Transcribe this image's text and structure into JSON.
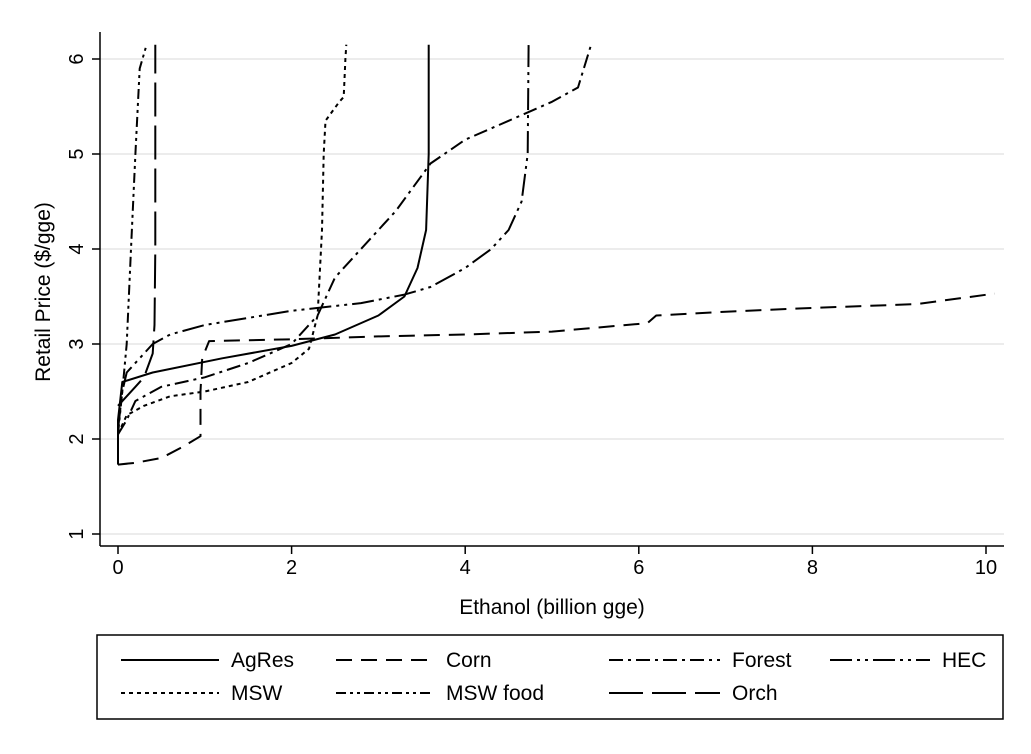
{
  "chart_data": {
    "type": "line",
    "xlabel": "Ethanol (billion gge)",
    "ylabel": "Retail Price ($/gge)",
    "xlim": [
      -0.2,
      10.2
    ],
    "ylim": [
      0.85,
      6.3
    ],
    "xticks": [
      0,
      2,
      4,
      6,
      8,
      10
    ],
    "yticks": [
      1,
      2,
      3,
      4,
      5,
      6
    ],
    "grid": "horizontal",
    "legend_position": "bottom",
    "series": [
      {
        "name": "AgRes",
        "dash": "solid",
        "points": [
          [
            0,
            1.73
          ],
          [
            0,
            2.2
          ],
          [
            0.05,
            2.6
          ],
          [
            0.4,
            2.7
          ],
          [
            1.2,
            2.85
          ],
          [
            2,
            2.98
          ],
          [
            2.5,
            3.1
          ],
          [
            3,
            3.3
          ],
          [
            3.3,
            3.5
          ],
          [
            3.45,
            3.8
          ],
          [
            3.55,
            4.2
          ],
          [
            3.58,
            5
          ],
          [
            3.58,
            6.15
          ]
        ]
      },
      {
        "name": "Corn",
        "dash": "longdash",
        "points": [
          [
            0,
            1.73
          ],
          [
            0.2,
            1.75
          ],
          [
            0.5,
            1.8
          ],
          [
            0.75,
            1.92
          ],
          [
            0.95,
            2.03
          ],
          [
            0.95,
            2.5
          ],
          [
            0.97,
            2.85
          ],
          [
            1.05,
            3.03
          ],
          [
            2,
            3.05
          ],
          [
            3,
            3.08
          ],
          [
            4,
            3.1
          ],
          [
            5,
            3.13
          ],
          [
            6.1,
            3.22
          ],
          [
            6.2,
            3.3
          ],
          [
            7,
            3.34
          ],
          [
            8,
            3.38
          ],
          [
            9.2,
            3.42
          ],
          [
            10.1,
            3.53
          ]
        ]
      },
      {
        "name": "Forest",
        "dash": "dashdot",
        "points": [
          [
            0,
            2.05
          ],
          [
            0.1,
            2.2
          ],
          [
            0.2,
            2.4
          ],
          [
            0.5,
            2.55
          ],
          [
            1,
            2.65
          ],
          [
            1.5,
            2.8
          ],
          [
            2,
            3
          ],
          [
            2.3,
            3.3
          ],
          [
            2.5,
            3.7
          ],
          [
            2.8,
            4
          ],
          [
            3.2,
            4.4
          ],
          [
            3.6,
            4.9
          ],
          [
            4,
            5.15
          ],
          [
            4.5,
            5.35
          ],
          [
            5,
            5.55
          ],
          [
            5.3,
            5.7
          ],
          [
            5.45,
            6.15
          ]
        ]
      },
      {
        "name": "HEC",
        "dash": "longdashdotdot",
        "points": [
          [
            0,
            2.1
          ],
          [
            0.05,
            2.5
          ],
          [
            0.1,
            2.7
          ],
          [
            0.4,
            3
          ],
          [
            0.6,
            3.1
          ],
          [
            1,
            3.2
          ],
          [
            2,
            3.35
          ],
          [
            2.8,
            3.43
          ],
          [
            3.3,
            3.52
          ],
          [
            3.6,
            3.6
          ],
          [
            4,
            3.8
          ],
          [
            4.3,
            4
          ],
          [
            4.5,
            4.2
          ],
          [
            4.65,
            4.5
          ],
          [
            4.72,
            5
          ],
          [
            4.73,
            6.15
          ]
        ]
      },
      {
        "name": "MSW",
        "dash": "dotted",
        "points": [
          [
            0,
            2.05
          ],
          [
            0.05,
            2.15
          ],
          [
            0.1,
            2.25
          ],
          [
            0.3,
            2.35
          ],
          [
            0.6,
            2.45
          ],
          [
            1,
            2.5
          ],
          [
            1.5,
            2.6
          ],
          [
            2,
            2.8
          ],
          [
            2.2,
            2.95
          ],
          [
            2.3,
            3.3
          ],
          [
            2.35,
            4.2
          ],
          [
            2.37,
            5
          ],
          [
            2.39,
            5.35
          ],
          [
            2.55,
            5.55
          ],
          [
            2.6,
            5.6
          ],
          [
            2.62,
            6
          ],
          [
            2.63,
            6.15
          ]
        ]
      },
      {
        "name": "MSW food",
        "dash": "dashdotdot",
        "points": [
          [
            0,
            2.05
          ],
          [
            0.05,
            2.5
          ],
          [
            0.1,
            3
          ],
          [
            0.15,
            4
          ],
          [
            0.2,
            5
          ],
          [
            0.25,
            5.9
          ],
          [
            0.33,
            6.15
          ]
        ]
      },
      {
        "name": "Orch",
        "dash": "xlongdash",
        "points": [
          [
            0,
            2.35
          ],
          [
            0.1,
            2.45
          ],
          [
            0.2,
            2.55
          ],
          [
            0.3,
            2.65
          ],
          [
            0.4,
            2.9
          ],
          [
            0.42,
            3.2
          ],
          [
            0.43,
            4
          ],
          [
            0.43,
            5
          ],
          [
            0.43,
            6.15
          ]
        ]
      }
    ]
  }
}
